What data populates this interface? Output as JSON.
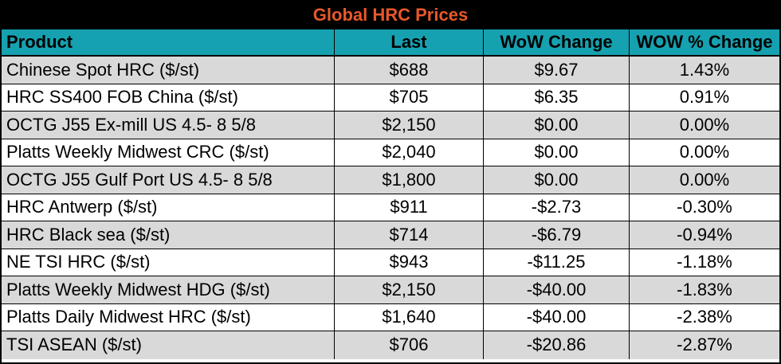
{
  "chart_data": {
    "type": "table",
    "title": "Global HRC Prices",
    "columns": [
      "Product",
      "Last",
      "WoW Change",
      "WOW % Change"
    ],
    "rows": [
      {
        "product": "Chinese Spot HRC ($/st)",
        "last": "$688",
        "wow_change": "$9.67",
        "wow_pct": "1.43%"
      },
      {
        "product": "HRC SS400 FOB China ($/st)",
        "last": "$705",
        "wow_change": "$6.35",
        "wow_pct": "0.91%"
      },
      {
        "product": "OCTG J55 Ex-mill US 4.5- 8 5/8",
        "last": "$2,150",
        "wow_change": "$0.00",
        "wow_pct": "0.00%"
      },
      {
        "product": "Platts Weekly Midwest CRC ($/st)",
        "last": "$2,040",
        "wow_change": "$0.00",
        "wow_pct": "0.00%"
      },
      {
        "product": "OCTG J55 Gulf Port US 4.5- 8 5/8",
        "last": "$1,800",
        "wow_change": "$0.00",
        "wow_pct": "0.00%"
      },
      {
        "product": "HRC Antwerp ($/st)",
        "last": "$911",
        "wow_change": "-$2.73",
        "wow_pct": "-0.30%"
      },
      {
        "product": "HRC Black sea ($/st)",
        "last": "$714",
        "wow_change": "-$6.79",
        "wow_pct": "-0.94%"
      },
      {
        "product": "NE TSI HRC ($/st)",
        "last": "$943",
        "wow_change": "-$11.25",
        "wow_pct": "-1.18%"
      },
      {
        "product": "Platts Weekly Midwest HDG ($/st)",
        "last": "$2,150",
        "wow_change": "-$40.00",
        "wow_pct": "-1.83%"
      },
      {
        "product": "Platts Daily Midwest HRC ($/st)",
        "last": "$1,640",
        "wow_change": "-$40.00",
        "wow_pct": "-2.38%"
      },
      {
        "product": "TSI ASEAN ($/st)",
        "last": "$706",
        "wow_change": "-$20.86",
        "wow_pct": "-2.87%"
      }
    ]
  },
  "colors": {
    "title_bg": "#000000",
    "title_text": "#e8582a",
    "header_bg": "#16a1b0",
    "row_shade": "#d9d9d9",
    "row_plain": "#ffffff"
  }
}
